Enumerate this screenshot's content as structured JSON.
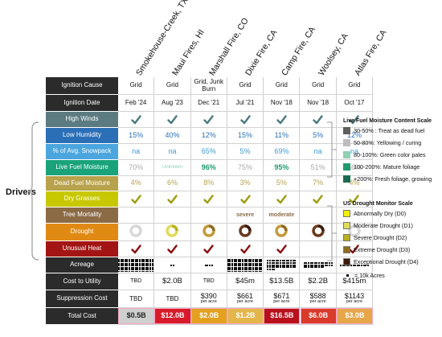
{
  "colors": {
    "label_dark": "#2b2b2b",
    "high_winds": "#5b7b80",
    "low_humidity": "#2b6fb7",
    "snowpack": "#4ba6df",
    "live_fuel": "#1aa37a",
    "dead_fuel": "#b8a24c",
    "dry_grasses": "#c8c800",
    "tree_mortality": "#8b6a46",
    "drought": "#e08a14",
    "unusual_heat": "#a31515",
    "check_teal": "#4a7a7e",
    "check_olive": "#9d9d10",
    "check_orange": "#d58a12",
    "check_maroon": "#8a1010",
    "total_pink": "#f7a8c4"
  },
  "fires": [
    "Smokehouse-Creek, TX",
    "Maui Fires, HI",
    "Marshall Fire, CO",
    "Dixie Fire, CA",
    "Camp Fire, CA",
    "Woolsey, CA",
    "Atlas Fire, CA"
  ],
  "row_labels": {
    "ignition_cause": "Ignition Cause",
    "ignition_date": "Ignition Date",
    "high_winds": "High Winds",
    "low_humidity": "Low Humidity",
    "snowpack": "% of Avg. Snowpack",
    "live_fuel": "Live Fuel Moisture",
    "dead_fuel": "Dead Fuel Moisture",
    "dry_grasses": "Dry Grasses",
    "tree_mortality": "Tree Mortality",
    "drought": "Drought",
    "unusual_heat": "Unusual Heat",
    "acreage": "Acreage",
    "cost_utility": "Cost to Utility",
    "suppression": "Suppression Cost",
    "total": "Total Cost"
  },
  "ignition_cause": [
    "Grid",
    "Grid",
    "Grid, Junk Burn",
    "Grid",
    "Grid",
    "Grid",
    "Grid"
  ],
  "ignition_date": [
    "Feb '24",
    "Aug '23",
    "Dec '21",
    "Jul '21",
    "Nov '18",
    "Nov '18",
    "Oct '17"
  ],
  "high_winds": [
    true,
    true,
    true,
    true,
    true,
    true,
    true
  ],
  "low_humidity": [
    "15%",
    "40%",
    "12%",
    "15%",
    "11%",
    "5%",
    "12%"
  ],
  "snowpack": [
    "na",
    "na",
    "65%",
    "5%",
    "69%",
    "na",
    "na"
  ],
  "live_fuel": [
    "70%",
    "Unknown",
    "96%",
    "75%",
    "95%",
    "51%",
    "56%"
  ],
  "dead_fuel": [
    "4%",
    "6%",
    "8%",
    "3%",
    "5%",
    "7%",
    "4%"
  ],
  "dry_grasses": [
    true,
    true,
    true,
    true,
    true,
    true,
    true
  ],
  "tree_mortality": [
    "",
    "",
    "",
    "severe",
    "moderate",
    "",
    ""
  ],
  "drought_levels": [
    "none",
    "D2",
    "D3",
    "D4",
    "D3",
    "D4",
    "none"
  ],
  "unusual_heat": [
    true,
    true,
    true,
    true,
    true,
    false,
    true
  ],
  "acreage_dots": [
    220,
    2,
    4,
    180,
    60,
    38,
    14
  ],
  "cost_utility": [
    "TBD",
    "$2.0B",
    "TBD",
    "$45m",
    "$13.5B",
    "$2.2B",
    "$415m"
  ],
  "suppression": [
    {
      "v": "TBD",
      "sub": ""
    },
    {
      "v": "TBD",
      "sub": ""
    },
    {
      "v": "$390",
      "sub": "per acre"
    },
    {
      "v": "$661",
      "sub": "per acre"
    },
    {
      "v": "$671",
      "sub": "per acre"
    },
    {
      "v": "$588",
      "sub": "per acre"
    },
    {
      "v": "$1143",
      "sub": "per acre"
    }
  ],
  "total_cost": [
    "$0.5B",
    "$12.0B",
    "$2.0B",
    "$1.2B",
    "$16.5B",
    "$6.0B",
    "$3.0B"
  ],
  "total_colors": [
    "#cfcfcf",
    "#d81b2a",
    "#e3a11f",
    "#e4b64a",
    "#b8101c",
    "#d93a2a",
    "#e6a64a"
  ],
  "drivers_label": "Drivers",
  "live_fuel_legend": {
    "title": "Live Fuel Moisture Content Scale",
    "items": [
      {
        "color": "#5f5f5f",
        "label": "30-50% : Treat as dead fuel"
      },
      {
        "color": "#bdbdbd",
        "label": "50-80%: Yellowing / curing"
      },
      {
        "color": "#8fd1b5",
        "label": "80-100%: Green color pales"
      },
      {
        "color": "#1f9a6c",
        "label": "100-200%: Mature foliage"
      },
      {
        "color": "#1a6a50",
        "label": "+200%: Fresh foliage, growing"
      }
    ]
  },
  "drought_legend": {
    "title": "US Drought Monitor Scale",
    "items": [
      {
        "color": "#f1f10a",
        "label": "Abnormally Dry (D0)"
      },
      {
        "color": "#e1db5a",
        "label": "Moderate Drought (D1)"
      },
      {
        "color": "#b8b020",
        "label": "Severe Drought (D2)"
      },
      {
        "color": "#8f6d1c",
        "label": "Extreme Drought (D3)"
      },
      {
        "color": "#3b1a0c",
        "label": "Exceptional Drought (D4)"
      }
    ],
    "note": "= 10k Acres"
  }
}
